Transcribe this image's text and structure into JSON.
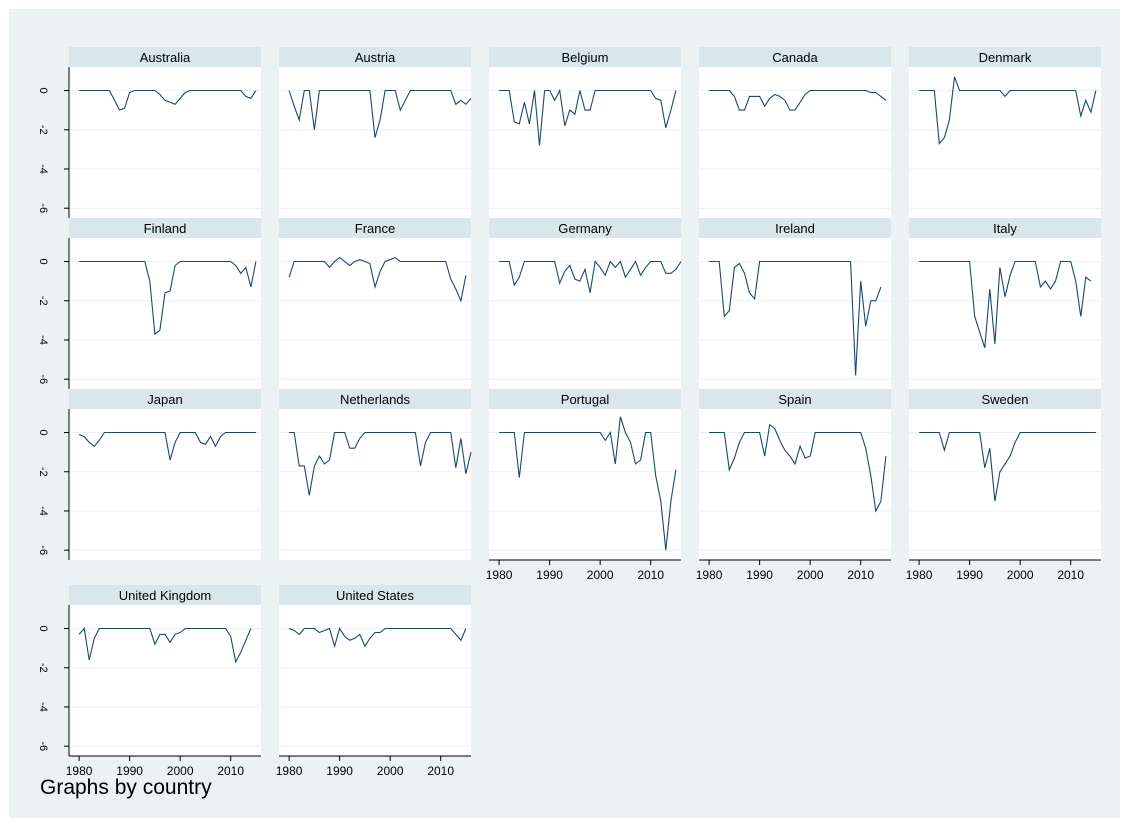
{
  "footnote": "Graphs by country",
  "colors": {
    "outer_bg": "#eaf2f3",
    "plot_bg": "#ffffff",
    "strip_bg": "#d9e6eb",
    "grid": "#eaf2f3",
    "line": "#1a476f",
    "axis": "#000000"
  },
  "chart_data": {
    "type": "line",
    "layout": "small-multiples 5 columns",
    "ylim": [
      -6.5,
      1.2
    ],
    "yticks": [
      0,
      -2,
      -4,
      -6
    ],
    "ytick_labels": [
      "0",
      "-2",
      "-4",
      "-6"
    ],
    "xlim": [
      1978,
      2016
    ],
    "xticks": [
      1980,
      1990,
      2000,
      2010
    ],
    "xtick_labels": [
      "1980",
      "1990",
      "2000",
      "2010"
    ],
    "x_start": 1980,
    "grid": true,
    "panels": [
      {
        "name": "Australia",
        "values": [
          0,
          0,
          0,
          0,
          0,
          0,
          0,
          -0.5,
          -1,
          -0.9,
          -0.1,
          0,
          0,
          0,
          0,
          0,
          -0.2,
          -0.5,
          -0.6,
          -0.7,
          -0.4,
          -0.1,
          0,
          0,
          0,
          0,
          0,
          0,
          0,
          0,
          0,
          0,
          0,
          -0.3,
          -0.4,
          0
        ]
      },
      {
        "name": "Austria",
        "values": [
          0,
          -0.8,
          -1.5,
          0,
          0,
          -2,
          0,
          0,
          0,
          0,
          0,
          0,
          0,
          0,
          0,
          0,
          0,
          -2.4,
          -1.5,
          0,
          0,
          0,
          -1,
          -0.5,
          0,
          0,
          0,
          0,
          0,
          0,
          0,
          0,
          0,
          -0.7,
          -0.5,
          -0.7,
          -0.4
        ]
      },
      {
        "name": "Belgium",
        "values": [
          0,
          0,
          0,
          -1.6,
          -1.7,
          -0.6,
          -1.7,
          0,
          -2.8,
          0,
          0,
          -0.5,
          0,
          -1.8,
          -1,
          -1.2,
          0,
          -1,
          -1,
          0,
          0,
          0,
          0,
          0,
          0,
          0,
          0,
          0,
          0,
          0,
          0,
          -0.4,
          -0.5,
          -1.9,
          -1,
          0
        ]
      },
      {
        "name": "Canada",
        "values": [
          0,
          0,
          0,
          0,
          0,
          -0.3,
          -1,
          -1,
          -0.3,
          -0.3,
          -0.3,
          -0.8,
          -0.4,
          -0.2,
          -0.3,
          -0.5,
          -1,
          -1,
          -0.6,
          -0.2,
          0,
          0,
          0,
          0,
          0,
          0,
          0,
          0,
          0,
          0,
          0,
          0,
          -0.1,
          -0.1,
          -0.3,
          -0.5
        ]
      },
      {
        "name": "Denmark",
        "values": [
          0,
          0,
          0,
          0,
          -2.7,
          -2.4,
          -1.5,
          0.7,
          0,
          0,
          0,
          0,
          0,
          0,
          0,
          0,
          0,
          -0.3,
          0,
          0,
          0,
          0,
          0,
          0,
          0,
          0,
          0,
          0,
          0,
          0,
          0,
          0,
          -1.3,
          -0.5,
          -1.1,
          0
        ]
      },
      {
        "name": "Finland",
        "values": [
          0,
          0,
          0,
          0,
          0,
          0,
          0,
          0,
          0,
          0,
          0,
          0,
          0,
          0,
          -1,
          -3.7,
          -3.5,
          -1.6,
          -1.5,
          -0.2,
          0,
          0,
          0,
          0,
          0,
          0,
          0,
          0,
          0,
          0,
          0,
          -0.2,
          -0.6,
          -0.3,
          -1.3,
          0
        ]
      },
      {
        "name": "France",
        "values": [
          -0.8,
          0,
          0,
          0,
          0,
          0,
          0,
          0,
          -0.3,
          0,
          0.2,
          0,
          -0.2,
          0,
          0.1,
          0,
          -0.1,
          -1.3,
          -0.5,
          0,
          0.1,
          0.2,
          0,
          0,
          0,
          0,
          0,
          0,
          0,
          0,
          0,
          0,
          -0.9,
          -1.4,
          -2,
          -0.7
        ]
      },
      {
        "name": "Germany",
        "values": [
          0,
          0,
          0,
          -1.2,
          -0.8,
          0,
          0,
          0,
          0,
          0,
          0,
          0,
          -1.1,
          -0.5,
          -0.2,
          -0.9,
          -1,
          -0.4,
          -1.6,
          0,
          -0.3,
          -0.7,
          0,
          -0.3,
          0,
          -0.8,
          -0.4,
          0,
          -0.7,
          -0.3,
          0,
          0,
          0,
          -0.6,
          -0.6,
          -0.4,
          0
        ]
      },
      {
        "name": "Ireland",
        "values": [
          0,
          0,
          0,
          -2.8,
          -2.5,
          -0.3,
          -0.1,
          -0.6,
          -1.6,
          -1.9,
          0,
          0,
          0,
          0,
          0,
          0,
          0,
          0,
          0,
          0,
          0,
          0,
          0,
          0,
          0,
          0,
          0,
          0,
          0,
          -5.8,
          -1,
          -3.3,
          -2,
          -2,
          -1.3
        ]
      },
      {
        "name": "Italy",
        "values": [
          0,
          0,
          0,
          0,
          0,
          0,
          0,
          0,
          0,
          0,
          0,
          -2.8,
          -3.6,
          -4.4,
          -1.4,
          -4.2,
          -0.3,
          -1.8,
          -0.7,
          0,
          0,
          0,
          0,
          0,
          -1.3,
          -1,
          -1.4,
          -1,
          0,
          0,
          0,
          -1,
          -2.8,
          -0.8,
          -1
        ]
      },
      {
        "name": "Japan",
        "values": [
          -0.1,
          -0.2,
          -0.5,
          -0.7,
          -0.4,
          0,
          0,
          0,
          0,
          0,
          0,
          0,
          0,
          0,
          0,
          0,
          0,
          0,
          -1.4,
          -0.5,
          0,
          0,
          0,
          0,
          -0.5,
          -0.6,
          -0.2,
          -0.7,
          -0.2,
          0,
          0,
          0,
          0,
          0,
          0,
          0
        ]
      },
      {
        "name": "Netherlands",
        "values": [
          0,
          0,
          -1.7,
          -1.7,
          -3.2,
          -1.7,
          -1.2,
          -1.6,
          -1.4,
          0,
          0,
          0,
          -0.8,
          -0.8,
          -0.3,
          0,
          0,
          0,
          0,
          0,
          0,
          0,
          0,
          0,
          0,
          0,
          -1.7,
          -0.5,
          0,
          0,
          0,
          0,
          0,
          -1.8,
          -0.3,
          -2.1,
          -1
        ]
      },
      {
        "name": "Portugal",
        "values": [
          0,
          0,
          0,
          0,
          -2.3,
          0,
          0,
          0,
          0,
          0,
          0,
          0,
          0,
          0,
          0,
          0,
          0,
          0,
          0,
          0,
          0,
          -0.4,
          0,
          -1.6,
          0.8,
          0,
          -0.5,
          -1.6,
          -1.4,
          0,
          0,
          -2.2,
          -3.5,
          -6,
          -3.5,
          -1.9
        ]
      },
      {
        "name": "Spain",
        "values": [
          0,
          0,
          0,
          0,
          -1.9,
          -1.3,
          -0.5,
          0,
          0,
          0,
          0,
          -1.2,
          0.4,
          0.2,
          -0.4,
          -0.9,
          -1.2,
          -1.6,
          -0.7,
          -1.3,
          -1.2,
          0,
          0,
          0,
          0,
          0,
          0,
          0,
          0,
          0,
          0,
          -0.8,
          -2.2,
          -4,
          -3.5,
          -1.2
        ]
      },
      {
        "name": "Sweden",
        "values": [
          0,
          0,
          0,
          0,
          0,
          -0.9,
          0,
          0,
          0,
          0,
          0,
          0,
          0,
          -1.8,
          -0.8,
          -3.5,
          -2,
          -1.6,
          -1.2,
          -0.5,
          0,
          0,
          0,
          0,
          0,
          0,
          0,
          0,
          0,
          0,
          0,
          0,
          0,
          0,
          0,
          0
        ]
      },
      {
        "name": "United Kingdom",
        "values": [
          -0.3,
          0,
          -1.6,
          -0.5,
          0,
          0,
          0,
          0,
          0,
          0,
          0,
          0,
          0,
          0,
          0,
          -0.8,
          -0.3,
          -0.3,
          -0.7,
          -0.3,
          -0.2,
          0,
          0,
          0,
          0,
          0,
          0,
          0,
          0,
          0,
          -0.4,
          -1.7,
          -1.2,
          -0.6,
          0
        ]
      },
      {
        "name": "United States",
        "values": [
          0,
          -0.1,
          -0.3,
          0,
          0,
          0,
          -0.2,
          -0.1,
          0,
          -0.9,
          0,
          -0.4,
          -0.6,
          -0.5,
          -0.3,
          -0.9,
          -0.5,
          -0.2,
          -0.2,
          0,
          0,
          0,
          0,
          0,
          0,
          0,
          0,
          0,
          0,
          0,
          0,
          0,
          0,
          -0.3,
          -0.6,
          0
        ]
      }
    ]
  }
}
